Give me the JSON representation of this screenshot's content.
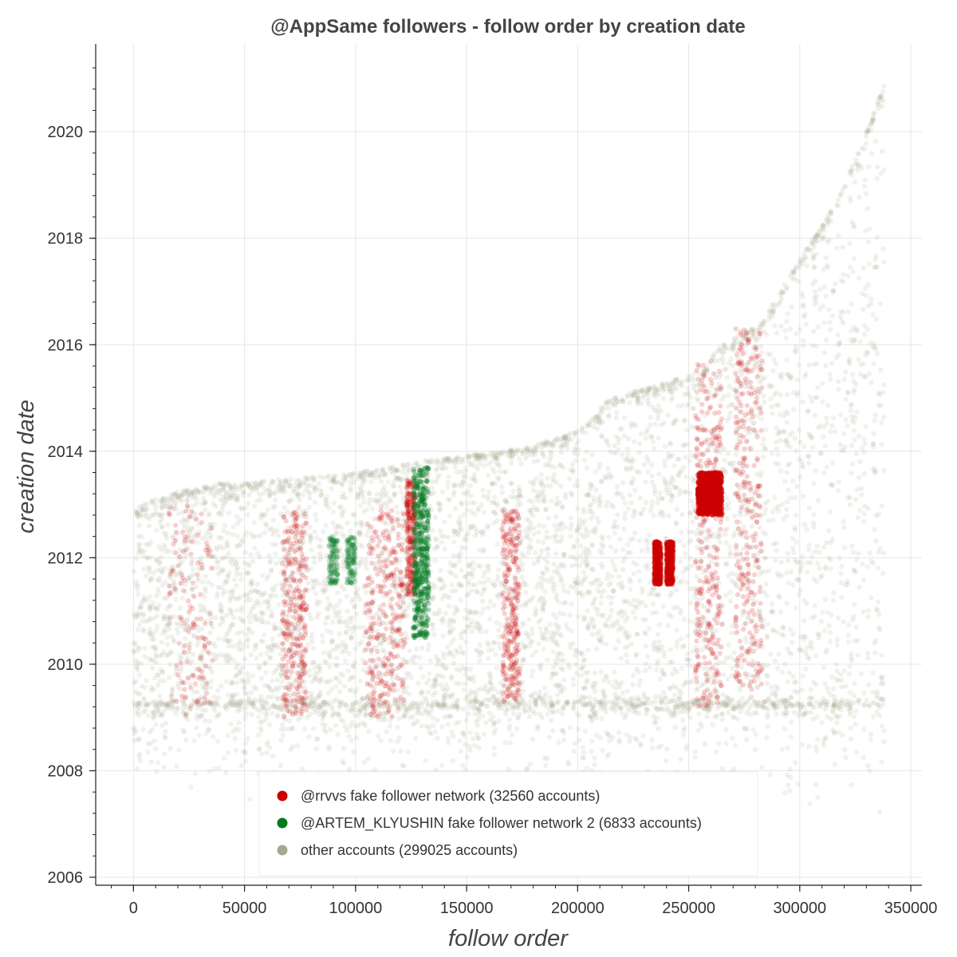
{
  "chart_data": {
    "type": "scatter",
    "title": "@AppSame followers - follow order by creation date",
    "xlabel": "follow order",
    "ylabel": "creation date",
    "xlim": [
      -17000,
      355000
    ],
    "ylim": [
      2005.85,
      2021.65
    ],
    "x_ticks": [
      0,
      50000,
      100000,
      150000,
      200000,
      250000,
      300000,
      350000
    ],
    "x_tick_labels": [
      "0",
      "50000",
      "100000",
      "150000",
      "200000",
      "250000",
      "300000",
      "350000"
    ],
    "y_ticks": [
      2006,
      2008,
      2010,
      2012,
      2014,
      2016,
      2018,
      2020
    ],
    "y_tick_labels": [
      "2006",
      "2008",
      "2010",
      "2012",
      "2014",
      "2016",
      "2018",
      "2020"
    ],
    "grid": true,
    "legend_position": "bottom-left",
    "series": [
      {
        "name": "@rrvvs fake follower network (32560 accounts)",
        "color": "#cc0000",
        "clusters": [
          {
            "x": [
              16000,
              36000
            ],
            "y": [
              2009.0,
              2013.0
            ],
            "density": "low"
          },
          {
            "x": [
              67000,
              78000
            ],
            "y": [
              2009.0,
              2012.9
            ],
            "density": "medium"
          },
          {
            "x": [
              104000,
              122000
            ],
            "y": [
              2009.0,
              2012.9
            ],
            "density": "medium"
          },
          {
            "x": [
              123000,
              127000
            ],
            "y": [
              2011.3,
              2013.5
            ],
            "density": "medium"
          },
          {
            "x": [
              166000,
              174000
            ],
            "y": [
              2009.3,
              2012.9
            ],
            "density": "medium"
          },
          {
            "x": [
              234500,
              237500
            ],
            "y": [
              2011.5,
              2012.3
            ],
            "density": "high"
          },
          {
            "x": [
              240000,
              243000
            ],
            "y": [
              2011.5,
              2012.3
            ],
            "density": "high"
          },
          {
            "x": [
              253000,
              265000
            ],
            "y": [
              2009.2,
              2015.7
            ],
            "density": "medium"
          },
          {
            "x": [
              254000,
              265000
            ],
            "y": [
              2012.8,
              2013.6
            ],
            "density": "very-high"
          },
          {
            "x": [
              271000,
              283000
            ],
            "y": [
              2009.5,
              2016.3
            ],
            "density": "medium"
          }
        ]
      },
      {
        "name": "@ARTEM_KLYUSHIN fake follower network 2 (6833 accounts)",
        "color": "#007a1f",
        "clusters": [
          {
            "x": [
              88000,
              92000
            ],
            "y": [
              2011.5,
              2012.4
            ],
            "density": "low"
          },
          {
            "x": [
              96000,
              100000
            ],
            "y": [
              2011.5,
              2012.4
            ],
            "density": "low"
          },
          {
            "x": [
              126000,
              133000
            ],
            "y": [
              2010.5,
              2013.7
            ],
            "density": "high"
          }
        ]
      },
      {
        "name": "other accounts (299025 accounts)",
        "color": "#a8a88e",
        "upper_envelope": {
          "x": [
            0,
            15000,
            40000,
            75000,
            100000,
            115000,
            135000,
            165000,
            180000,
            200000,
            215000,
            240000,
            255000,
            265000,
            282000,
            300000,
            318000,
            330000,
            338000
          ],
          "y": [
            2012.9,
            2013.2,
            2013.4,
            2013.5,
            2013.6,
            2013.7,
            2013.85,
            2014.0,
            2014.1,
            2014.4,
            2015.0,
            2015.3,
            2015.5,
            2016.0,
            2016.4,
            2017.6,
            2018.8,
            2020.0,
            2020.9
          ]
        },
        "dense_band": {
          "y": [
            2009.2,
            2009.3
          ]
        }
      }
    ]
  }
}
